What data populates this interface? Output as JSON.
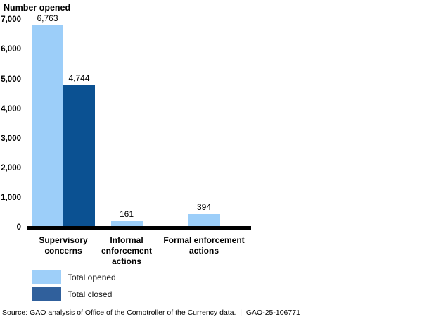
{
  "chart_data": {
    "type": "bar",
    "title": "Number opened",
    "categories": [
      "Supervisory concerns",
      "Informal enforcement actions",
      "Formal enforcement actions"
    ],
    "series": [
      {
        "name": "Total opened",
        "color": "#9CCEF9",
        "values": [
          6763,
          161,
          394
        ],
        "labels": [
          "6,763",
          "161",
          "394"
        ]
      },
      {
        "name": "Total closed",
        "color": "#0B5192",
        "values": [
          4744,
          null,
          null
        ],
        "labels": [
          "4,744",
          null,
          null
        ]
      }
    ],
    "yticks": [
      "0",
      "1,000",
      "2,000",
      "3,000",
      "4,000",
      "5,000",
      "6,000",
      "7,000"
    ],
    "ytick_step": 1000,
    "ylim": [
      0,
      7000
    ],
    "grid": false,
    "legend_position": "bottom-left"
  },
  "legend": {
    "items": [
      {
        "label": "Total opened",
        "color": "#9ECFF9"
      },
      {
        "label": "Total closed",
        "color": "#30609C"
      }
    ]
  },
  "source_note": "Source: GAO analysis of Office of the Comptroller of the Currency data.  |  GAO-25-106771"
}
